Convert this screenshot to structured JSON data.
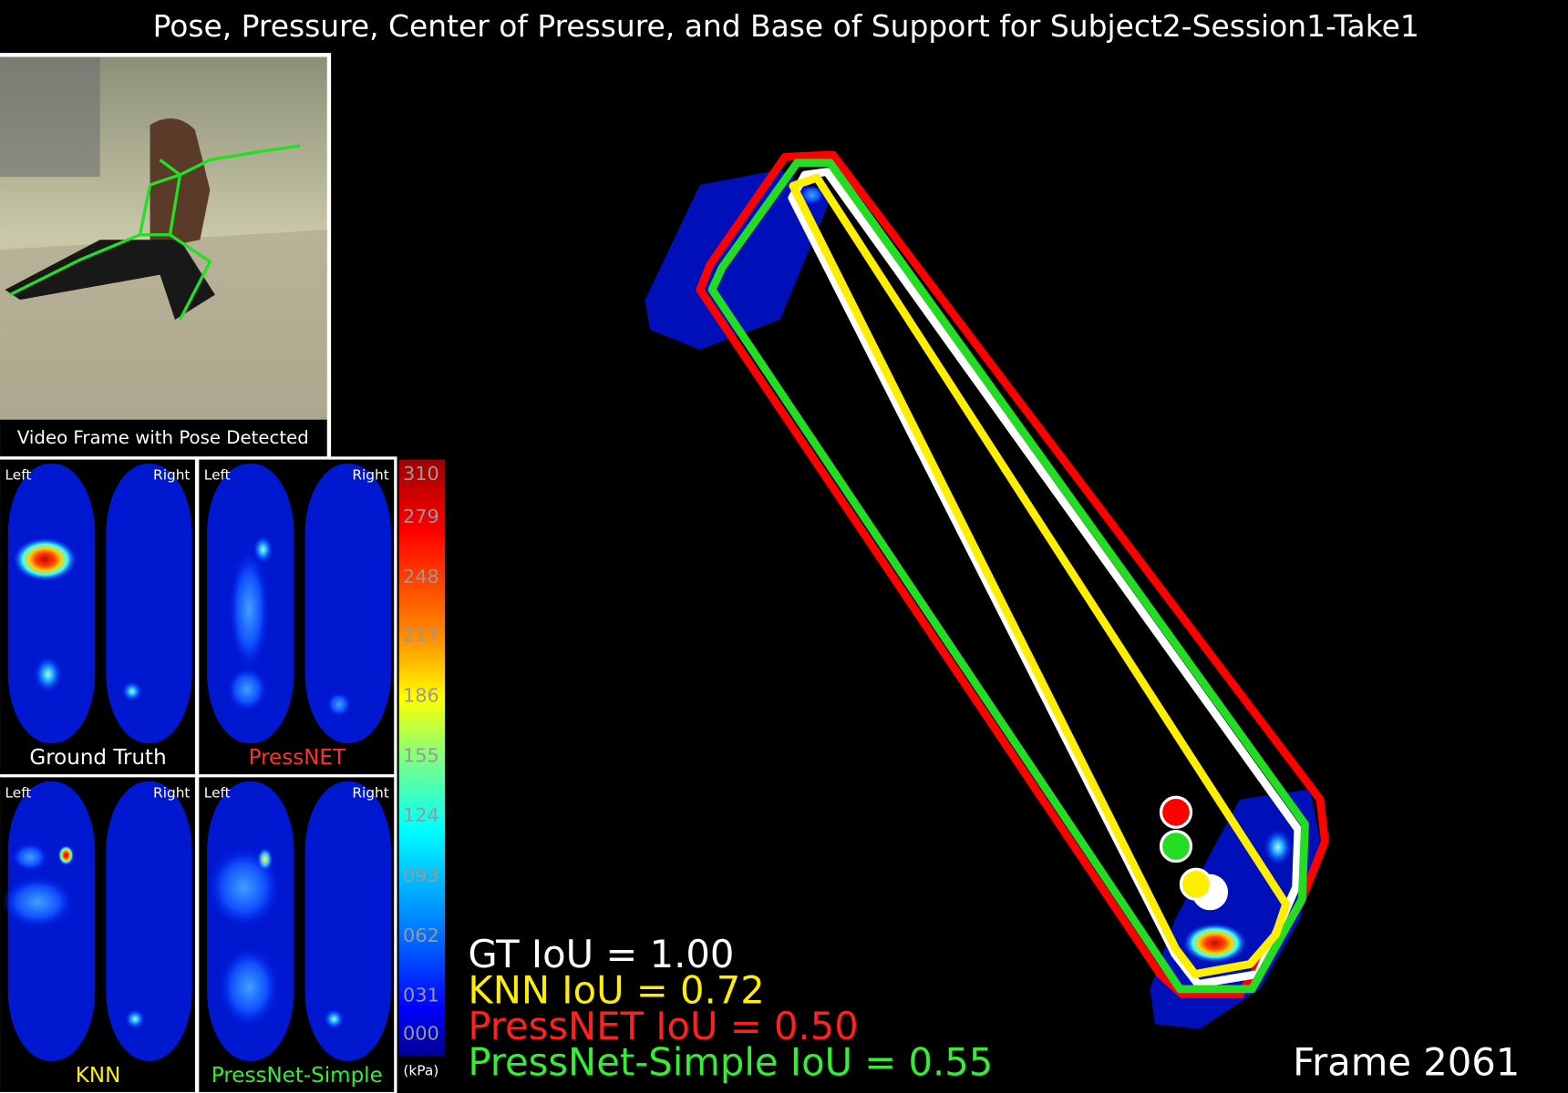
{
  "title": "Pose, Pressure, Center of Pressure, and Base of Support for Subject2-Session1-Take1",
  "video": {
    "caption": "Video Frame with Pose Detected"
  },
  "pressure_maps": [
    {
      "left": "Left",
      "right": "Right",
      "name": "Ground Truth"
    },
    {
      "left": "Left",
      "right": "Right",
      "name": "PressNET"
    },
    {
      "left": "Left",
      "right": "Right",
      "name": "KNN"
    },
    {
      "left": "Left",
      "right": "Right",
      "name": "PressNet-Simple"
    }
  ],
  "colorbar": {
    "ticks": [
      "310",
      "279",
      "248",
      "217",
      "186",
      "155",
      "124",
      "093",
      "062",
      "031",
      "000"
    ],
    "unit": "(kPa)"
  },
  "iou": [
    "GT IoU = 1.00",
    "KNN IoU = 0.72",
    "PressNET IoU = 0.50",
    "PressNet-Simple IoU = 0.55"
  ],
  "frame": "Frame 2061"
}
